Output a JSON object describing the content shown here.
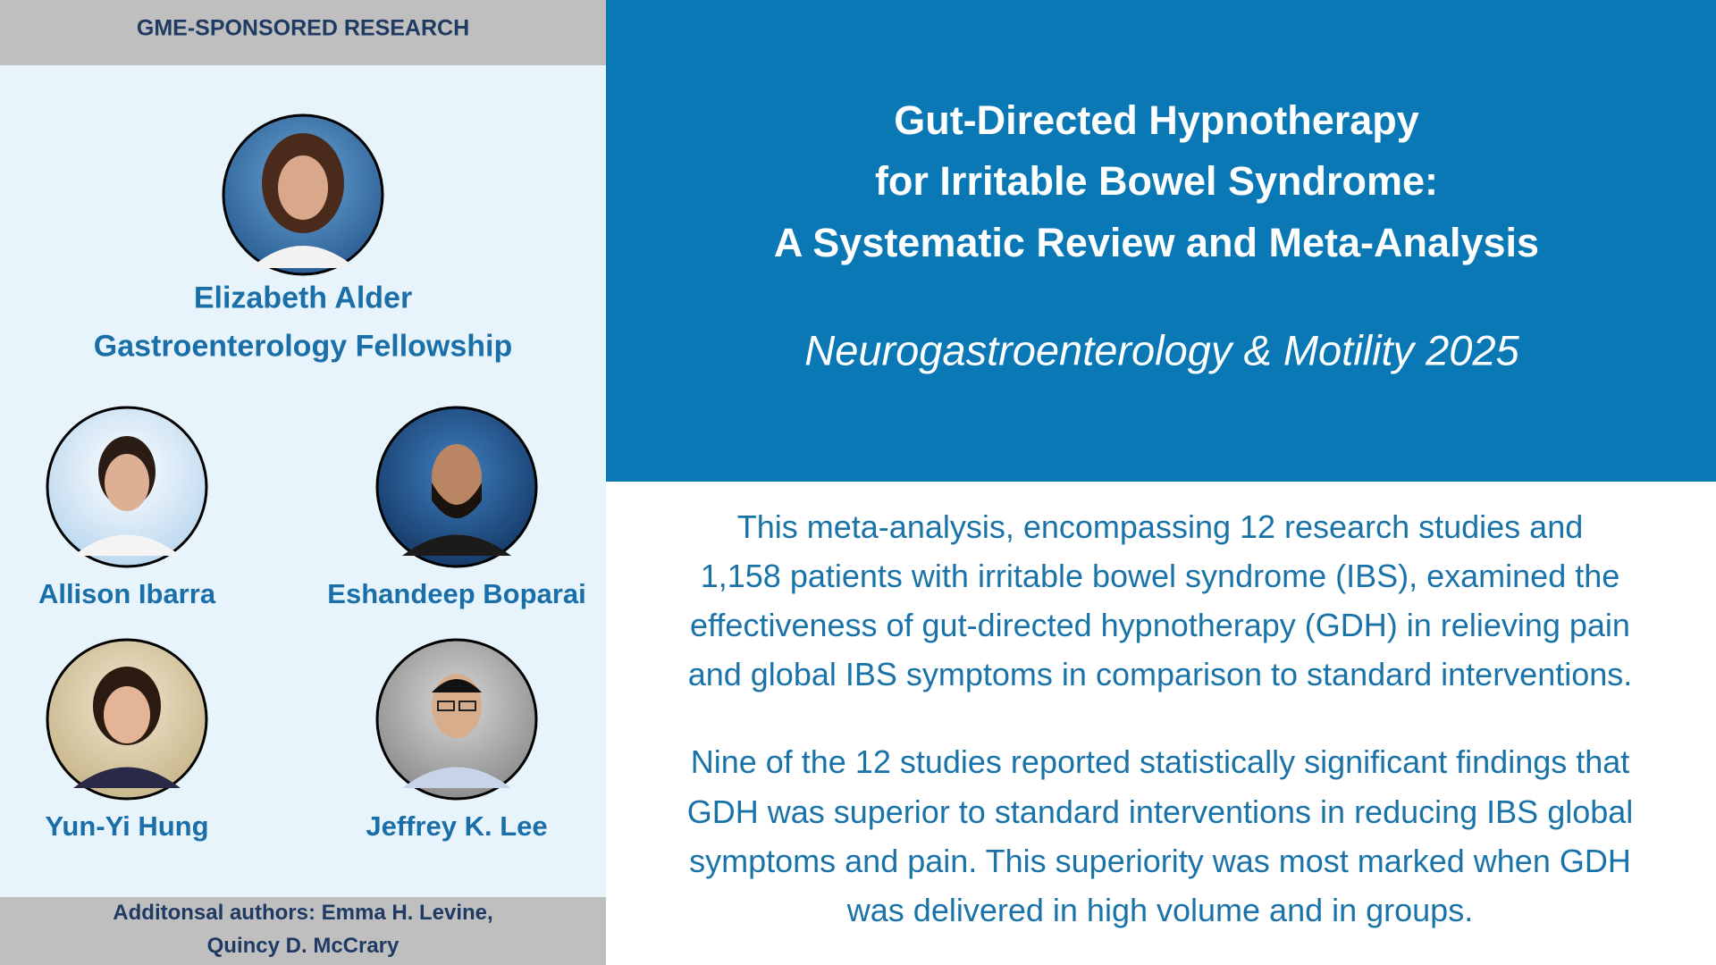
{
  "header": {
    "label": "GME-SPONSORED RESEARCH"
  },
  "featured": {
    "name": "Elizabeth Alder",
    "program": "Gastroenterology Fellowship"
  },
  "authors": [
    "Allison Ibarra",
    "Eshandeep Boparai",
    "Yun-Yi Hung",
    "Jeffrey K. Lee"
  ],
  "footer": {
    "lines": [
      "Additonsal authors: Emma H. Levine,",
      "Quincy D. McCrary"
    ]
  },
  "title": {
    "lines": [
      "Gut-Directed Hypnotherapy",
      "for Irritable Bowel Syndrome:",
      "A Systematic Review and Meta-Analysis"
    ]
  },
  "journal": "Neurogastroenterology & Motility 2025",
  "paragraphs": [
    [
      "This meta-analysis, encompassing 12 research studies and",
      "1,158 patients with irritable bowel syndrome (IBS), examined the",
      "effectiveness of gut-directed hypnotherapy (GDH) in relieving pain",
      "and global IBS symptoms in comparison to standard interventions."
    ],
    [
      "Nine of the 12 studies reported statistically significant findings that",
      "GDH was superior to standard interventions in reducing IBS global",
      "symptoms and pain. This superiority was most marked when GDH",
      "was delivered in high volume and in groups."
    ]
  ]
}
